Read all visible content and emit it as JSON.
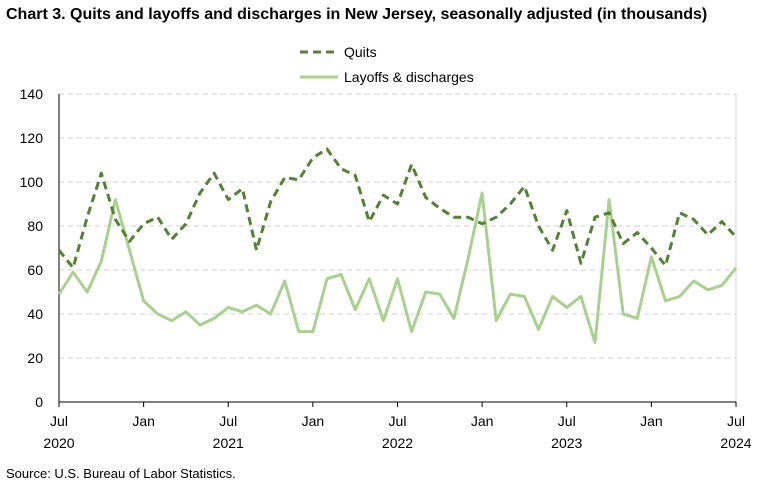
{
  "chart_data": {
    "type": "line",
    "title": "Chart 3. Quits and layoffs and discharges in New Jersey, seasonally adjusted (in thousands)",
    "source": "Source: U.S. Bureau of Labor Statistics.",
    "xlabel": "",
    "ylabel": "",
    "ylim": [
      0,
      140
    ],
    "yticks": [
      "0",
      "20",
      "40",
      "60",
      "80",
      "100",
      "120",
      "140"
    ],
    "xticks": [
      {
        "month": "Jul",
        "year": "2020"
      },
      {
        "month": "Jan",
        "year": ""
      },
      {
        "month": "Jul",
        "year": "2021"
      },
      {
        "month": "Jan",
        "year": ""
      },
      {
        "month": "Jul",
        "year": "2022"
      },
      {
        "month": "Jan",
        "year": ""
      },
      {
        "month": "Jul",
        "year": "2023"
      },
      {
        "month": "Jan",
        "year": ""
      },
      {
        "month": "Jul",
        "year": "2024"
      }
    ],
    "x_start": "2020-07",
    "x_end": "2024-07",
    "grid": true,
    "legend": "top-center",
    "series": [
      {
        "name": "Quits",
        "color": "#548235",
        "style": "dashed",
        "values": [
          69,
          61,
          84,
          104,
          83,
          73,
          81,
          84,
          74,
          81,
          95,
          104,
          92,
          97,
          69,
          91,
          102,
          101,
          111,
          115,
          106,
          103,
          82,
          94,
          90,
          108,
          93,
          88,
          84,
          84,
          81,
          84,
          90,
          98,
          80,
          69,
          87,
          63,
          84,
          86,
          72,
          77,
          70,
          62,
          86,
          83,
          76,
          82,
          75
        ]
      },
      {
        "name": "Layoffs & discharges",
        "color": "#a9d18e",
        "style": "solid",
        "values": [
          49,
          59,
          50,
          64,
          92,
          69,
          46,
          40,
          37,
          41,
          35,
          38,
          43,
          41,
          44,
          40,
          55,
          32,
          32,
          56,
          58,
          42,
          56,
          37,
          56,
          32,
          50,
          49,
          38,
          65,
          95,
          37,
          49,
          48,
          33,
          48,
          43,
          48,
          27,
          92,
          40,
          38,
          66,
          46,
          48,
          55,
          51,
          53,
          61
        ]
      }
    ]
  }
}
